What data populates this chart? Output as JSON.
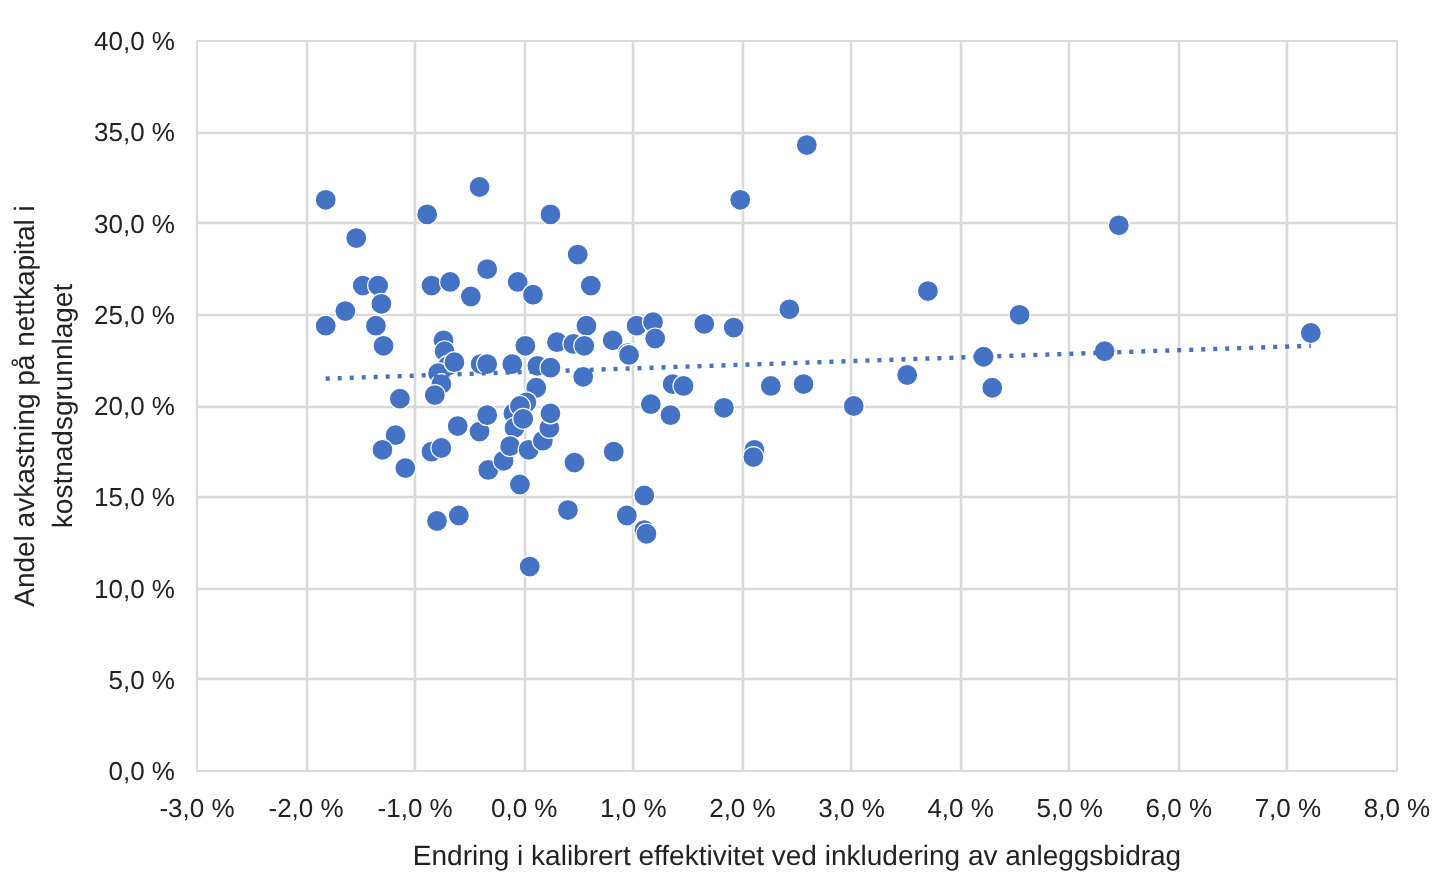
{
  "chart_data": {
    "type": "scatter",
    "xlabel": "Endring i kalibrert effektivitet ved inkludering av anleggsbidrag",
    "ylabel": "Andel avkastning på nettkapital i kostnadsgrunnlaget",
    "xlim": [
      -3,
      8
    ],
    "ylim": [
      0,
      40
    ],
    "xticks": [
      {
        "value": -3,
        "label": "-3,0 %"
      },
      {
        "value": -2,
        "label": "-2,0 %"
      },
      {
        "value": -1,
        "label": "-1,0 %"
      },
      {
        "value": 0,
        "label": "0,0 %"
      },
      {
        "value": 1,
        "label": "1,0 %"
      },
      {
        "value": 2,
        "label": "2,0 %"
      },
      {
        "value": 3,
        "label": "3,0 %"
      },
      {
        "value": 4,
        "label": "4,0 %"
      },
      {
        "value": 5,
        "label": "5,0 %"
      },
      {
        "value": 6,
        "label": "6,0 %"
      },
      {
        "value": 7,
        "label": "7,0 %"
      },
      {
        "value": 8,
        "label": "8,0 %"
      }
    ],
    "yticks": [
      {
        "value": 0,
        "label": "0,0 %"
      },
      {
        "value": 5,
        "label": "5,0 %"
      },
      {
        "value": 10,
        "label": "10,0 %"
      },
      {
        "value": 15,
        "label": "15,0 %"
      },
      {
        "value": 20,
        "label": "20,0 %"
      },
      {
        "value": 25,
        "label": "25,0 %"
      },
      {
        "value": 30,
        "label": "30,0 %"
      },
      {
        "value": 35,
        "label": "35,0 %"
      },
      {
        "value": 40,
        "label": "40,0 %"
      }
    ],
    "grid": true,
    "marker": "circle",
    "series": [
      {
        "color": "#4472c4",
        "x": [
          -1.82,
          -1.64,
          -1.82,
          -1.54,
          -1.48,
          -1.34,
          -1.31,
          -1.36,
          -1.29,
          -0.89,
          -0.85,
          -0.68,
          -0.41,
          -0.34,
          -0.49,
          -0.74,
          -0.73,
          -0.7,
          -0.79,
          -0.76,
          -0.64,
          -0.4,
          -0.34,
          -0.11,
          -0.06,
          0.08,
          0.01,
          0.12,
          0.24,
          0.24,
          0.3,
          0.49,
          0.61,
          0.57,
          0.45,
          0.55,
          0.54,
          0.81,
          0.95,
          1.03,
          -1.14,
          -0.82,
          0.11,
          0.02,
          -1.18,
          -1.3,
          -1.09,
          -0.85,
          -0.76,
          -0.8,
          -0.6,
          -0.61,
          -0.41,
          -0.34,
          -0.33,
          -0.19,
          -0.1,
          -0.04,
          -0.09,
          -0.01,
          -0.13,
          -0.04,
          0.04,
          0.05,
          0.17,
          0.23,
          0.24,
          0.46,
          0.4,
          0.82,
          0.94,
          1.1,
          1.1,
          1.12,
          1.16,
          1.34,
          1.36,
          1.46,
          1.83,
          2.11,
          2.1,
          2.26,
          2.56,
          3.02,
          3.51,
          4.29,
          0.96,
          1.18,
          1.2,
          1.65,
          1.92,
          1.98,
          2.59,
          2.43,
          3.7,
          4.21,
          4.54,
          5.32,
          5.45,
          7.21
        ],
        "values": [
          31.3,
          25.2,
          24.4,
          29.2,
          26.6,
          26.6,
          25.6,
          24.4,
          23.3,
          30.5,
          26.6,
          26.8,
          32.0,
          27.5,
          26.0,
          23.6,
          23.0,
          22.2,
          21.8,
          21.2,
          22.4,
          22.3,
          22.3,
          22.3,
          26.8,
          26.1,
          23.3,
          22.2,
          22.1,
          30.5,
          23.5,
          28.3,
          26.6,
          24.4,
          23.4,
          23.3,
          21.6,
          23.6,
          22.9,
          24.4,
          20.4,
          20.6,
          21.0,
          20.2,
          18.4,
          17.6,
          16.6,
          17.5,
          17.7,
          13.7,
          14.0,
          18.9,
          18.6,
          19.5,
          16.5,
          17.0,
          19.6,
          20.0,
          18.8,
          19.3,
          17.8,
          15.7,
          17.6,
          11.2,
          18.1,
          18.8,
          19.6,
          16.9,
          14.3,
          17.5,
          14.0,
          15.1,
          13.2,
          13.0,
          20.1,
          19.5,
          21.2,
          21.1,
          19.9,
          17.6,
          17.2,
          21.1,
          21.2,
          20.0,
          21.7,
          21.0,
          22.8,
          24.6,
          23.7,
          24.5,
          24.3,
          31.3,
          34.3,
          25.3,
          26.3,
          22.7,
          25.0,
          23.0,
          29.9,
          24.0
        ]
      },
      {
        "type": "line",
        "color": "#4472c4",
        "line_style": "dotted",
        "marker": "none",
        "x": [
          -1.82,
          7.21
        ],
        "values": [
          21.5,
          23.3
        ]
      }
    ]
  }
}
